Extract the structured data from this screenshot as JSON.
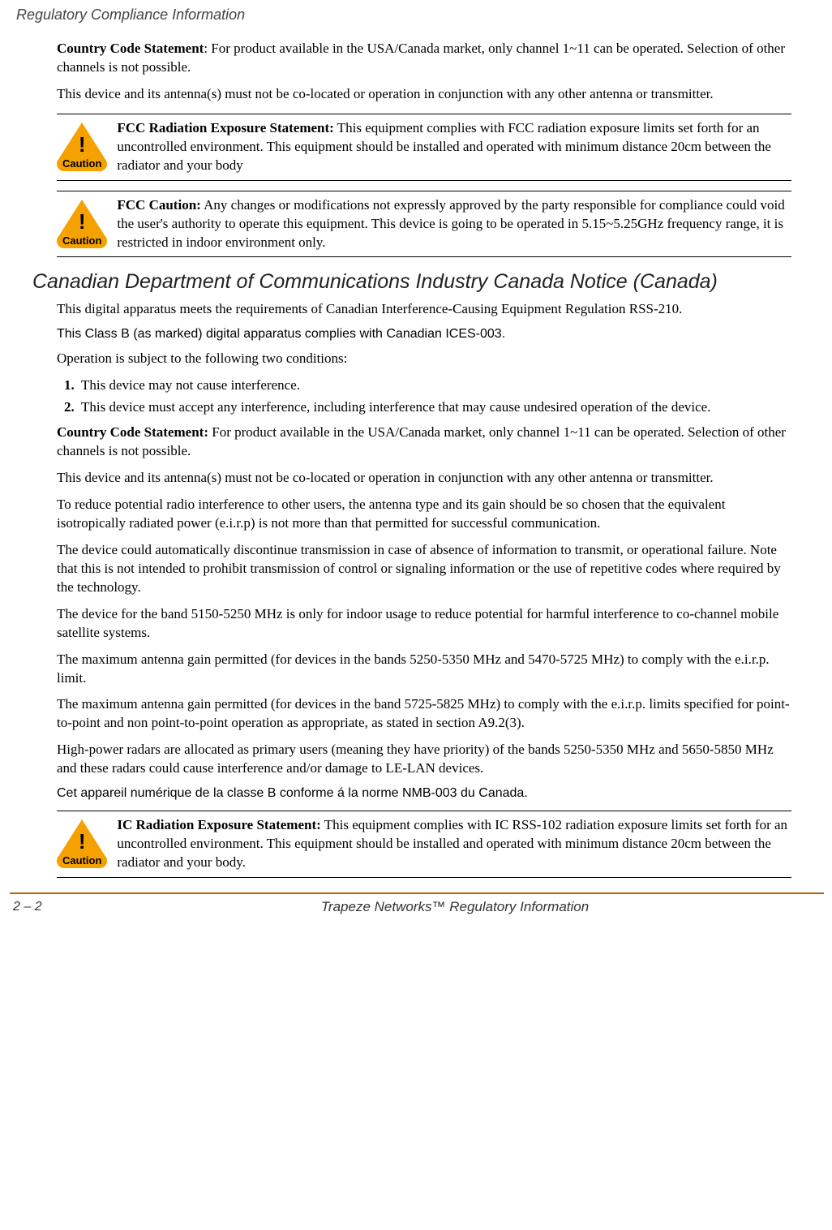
{
  "header": "Regulatory Compliance Information",
  "p1_label": "Country Code Statement",
  "p1_text": ": For product available in the USA/Canada market, only channel 1~11 can be operated. Selection of other channels is not possible.",
  "p2": "This device and its antenna(s) must not be co-located or operation in conjunction with any other antenna or transmitter.",
  "caution_label": "Caution",
  "caution1_title": "FCC Radiation Exposure Statement:",
  "caution1_body": " This equipment complies with FCC radiation exposure limits set forth for an uncontrolled environment. This equipment should be installed and operated with minimum distance 20cm between the radiator and your body",
  "caution2_title": "FCC Caution:",
  "caution2_body": " Any changes or modifications not expressly approved by the party responsible for compliance could void the user's authority to operate this equipment. This device is going to be operated in 5.15~5.25GHz frequency range, it is restricted in indoor environment only.",
  "section_heading": "Canadian Department of Communications Industry Canada Notice (Canada)",
  "s_p1": "This digital apparatus meets the requirements of Canadian Interference-Causing Equipment Regulation RSS-210.",
  "s_p2_sans": "This Class  B (as marked) digital apparatus complies with Canadian ICES-003.",
  "s_p3": "Operation is subject to the following two conditions:",
  "li1": "This device may not cause interference.",
  "li2": "This device must accept any interference, including interference that may cause undesired operation of the device.",
  "s_p4_label": "Country Code Statement:",
  "s_p4_text": " For product available in the USA/Canada market, only channel 1~11 can be operated. Selection of other channels is not possible.",
  "s_p5": "This device and its antenna(s) must not be co-located or operation in conjunction with any other antenna or transmitter.",
  "s_p6": "To reduce potential radio interference to other users, the antenna type and its gain should be so chosen that the equivalent isotropically radiated power (e.i.r.p) is not more than that permitted for successful communication.",
  "s_p7": "The device could automatically discontinue transmission in case of absence of information to transmit, or operational failure. Note that this is not intended to prohibit transmission of control or signaling information or the use of repetitive codes where required by the technology.",
  "s_p8": "The device for the band 5150-5250 MHz is only for indoor usage to reduce potential for harmful interference to co-channel mobile satellite systems.",
  "s_p9": "The maximum antenna gain permitted (for devices in the bands 5250-5350 MHz and 5470-5725 MHz) to comply with the e.i.r.p. limit.",
  "s_p10": "The maximum antenna gain permitted (for devices in the band 5725-5825 MHz) to comply with the e.i.r.p. limits specified for point-to-point and non point-to-point operation as appropriate, as stated in section A9.2(3).",
  "s_p11": "High-power radars are allocated as primary users (meaning they have priority) of the bands 5250-5350 MHz and 5650-5850 MHz and these radars could cause interference and/or damage to LE-LAN devices.",
  "s_p12_sans": "Cet appareil numérique de la classe B conforme á la norme NMB-003 du Canada.",
  "caution3_title": "IC Radiation Exposure Statement:",
  "caution3_body": " This equipment complies with IC RSS-102 radiation exposure limits set forth for an uncontrolled environment. This equipment should be installed and operated with minimum distance 20cm between the radiator and your body.",
  "footer_page": "2 – 2",
  "footer_title": "Trapeze Networks™ Regulatory Information"
}
